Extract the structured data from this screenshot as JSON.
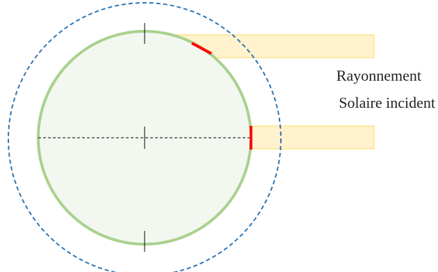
{
  "diagram": {
    "caption_lines": [
      "Rayonnement",
      "Solaire incident"
    ],
    "colors": {
      "earth_fill": "#f2f7ef",
      "earth_stroke": "#a9d18e",
      "atmosphere_stroke": "#2e75b6",
      "beam_fill": "#fff2cc",
      "beam_stroke": "#ffd966",
      "incidence_mark": "#ff0000",
      "axis": "#000000"
    },
    "shapes": {
      "earth": "circle",
      "atmosphere": "dashed-circle",
      "beams": 2,
      "incidence_marks": 2
    }
  }
}
